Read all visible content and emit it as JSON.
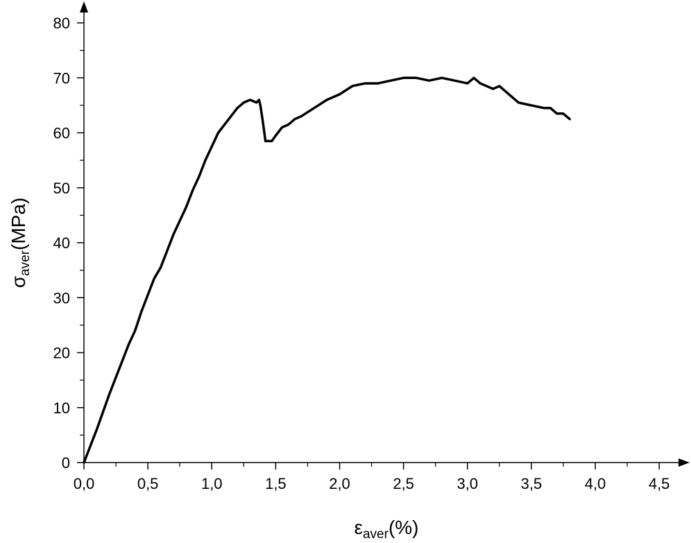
{
  "chart_data": {
    "type": "line",
    "title": "",
    "xlabel": {
      "symbol": "ε",
      "subscript": "aver",
      "suffix": "(%)"
    },
    "ylabel": {
      "symbol": "σ",
      "subscript": "aver",
      "suffix": "(MPa)"
    },
    "xlim": [
      0,
      4.6
    ],
    "ylim": [
      0,
      85
    ],
    "x_ticks": [
      0,
      0.5,
      1.0,
      1.5,
      2.0,
      2.5,
      3.0,
      3.5,
      4.0,
      4.5
    ],
    "x_tick_labels": [
      "0,0",
      "0,5",
      "1,0",
      "1,5",
      "2,0",
      "2,5",
      "3,0",
      "3,5",
      "4,0",
      "4,5"
    ],
    "y_ticks": [
      0,
      10,
      20,
      30,
      40,
      50,
      60,
      70,
      80
    ],
    "y_tick_labels": [
      "0",
      "10",
      "20",
      "30",
      "40",
      "50",
      "60",
      "70",
      "80"
    ],
    "grid": false,
    "legend": "none",
    "line_color": "#000000",
    "series": [
      {
        "x": [
          0.0,
          0.1,
          0.2,
          0.3,
          0.35,
          0.4,
          0.45,
          0.5,
          0.55,
          0.6,
          0.65,
          0.7,
          0.75,
          0.8,
          0.85,
          0.9,
          0.95,
          1.0,
          1.05,
          1.1,
          1.15,
          1.2,
          1.25,
          1.3,
          1.35,
          1.37,
          1.38,
          1.4,
          1.42,
          1.44,
          1.47,
          1.5,
          1.55,
          1.6,
          1.65,
          1.7,
          1.8,
          1.9,
          2.0,
          2.1,
          2.2,
          2.3,
          2.4,
          2.5,
          2.6,
          2.7,
          2.8,
          2.9,
          3.0,
          3.05,
          3.1,
          3.2,
          3.25,
          3.3,
          3.35,
          3.4,
          3.5,
          3.6,
          3.65,
          3.7,
          3.75,
          3.8
        ],
        "y": [
          0,
          6,
          12.5,
          18.5,
          21.5,
          24,
          27.5,
          30.5,
          33.5,
          35.5,
          38.5,
          41.5,
          44,
          46.5,
          49.5,
          52,
          55,
          57.5,
          60,
          61.5,
          63,
          64.5,
          65.5,
          66,
          65.5,
          66,
          65,
          62,
          58.5,
          58.5,
          58.5,
          59.5,
          61,
          61.5,
          62.5,
          63,
          64.5,
          66,
          67,
          68.5,
          69,
          69,
          69.5,
          70,
          70,
          69.5,
          70,
          69.5,
          69,
          70,
          69,
          68,
          68.5,
          67.5,
          66.5,
          65.5,
          65,
          64.5,
          64.5,
          63.5,
          63.5,
          62.5
        ]
      }
    ]
  }
}
